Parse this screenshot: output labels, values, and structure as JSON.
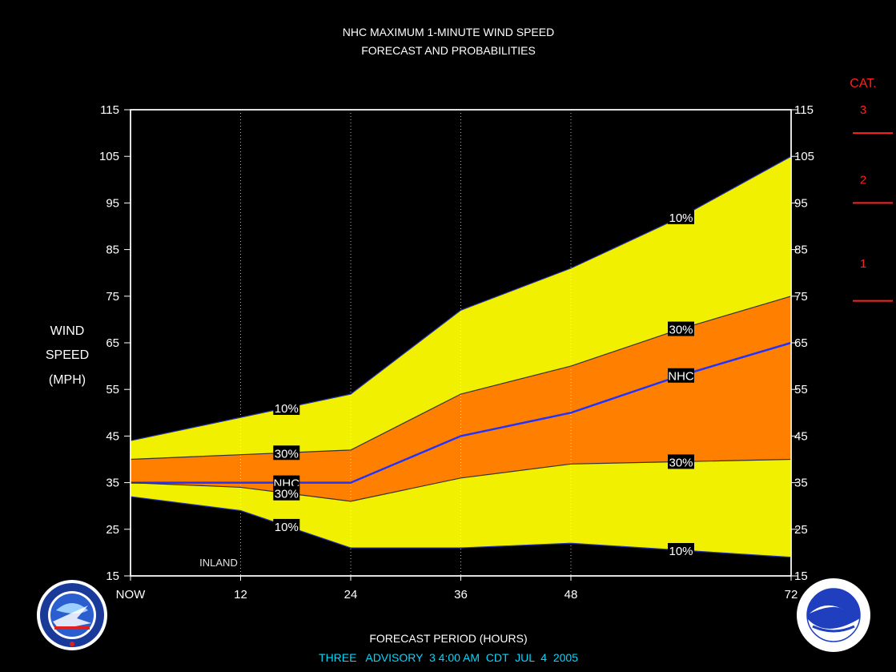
{
  "chart_data": {
    "type": "area",
    "title": "NHC MAXIMUM 1-MINUTE WIND SPEED",
    "subtitle": "FORECAST AND PROBABILITIES",
    "ylabel": [
      "WIND",
      "SPEED",
      "(MPH)"
    ],
    "xlabel": "FORECAST PERIOD (HOURS)",
    "advisory": "THREE   ADVISORY  3 4:00 AM  CDT  JUL  4  2005",
    "annotation": "INLAND",
    "x_tick_labels": [
      "NOW",
      "12",
      "24",
      "36",
      "48",
      "72"
    ],
    "x_ticks": [
      0,
      12,
      24,
      36,
      48,
      72
    ],
    "xlim": [
      0,
      72
    ],
    "ylim": [
      15,
      115
    ],
    "y_ticks": [
      15,
      25,
      35,
      45,
      55,
      65,
      75,
      85,
      95,
      105,
      115
    ],
    "x": [
      0,
      12,
      24,
      36,
      48,
      60,
      72
    ],
    "series": [
      {
        "label": "10%",
        "color": "#f0f000",
        "values": [
          44,
          49,
          54,
          72,
          81,
          92,
          105
        ]
      },
      {
        "label": "30%",
        "color": "#ff8000",
        "values": [
          40,
          41,
          42,
          54,
          60,
          68,
          75
        ]
      },
      {
        "label": "NHC",
        "color": "#2233ff",
        "values": [
          35,
          35,
          35,
          45,
          50,
          58,
          65
        ]
      },
      {
        "label": "30%",
        "color": "#ff8000",
        "values": [
          35,
          34,
          31,
          36,
          39,
          39.5,
          40
        ]
      },
      {
        "label": "10%",
        "color": "#f0f000",
        "values": [
          32,
          29,
          21,
          21,
          22,
          20.5,
          19
        ]
      }
    ],
    "category_scale": {
      "title": "CAT.",
      "categories": [
        {
          "label": "3",
          "value": 115
        },
        {
          "label": "2",
          "value": 100
        },
        {
          "label": "1",
          "value": 82
        }
      ],
      "thresholds": [
        110,
        95,
        74
      ],
      "color": "#ff2020"
    },
    "colors": {
      "background": "#000000",
      "outer_band": "#f0f000",
      "inner_band": "#ff8000",
      "forecast_line": "#2233ff",
      "advisory_text": "#00d8ff"
    },
    "logos": [
      "nws-logo",
      "noaa-logo"
    ]
  }
}
